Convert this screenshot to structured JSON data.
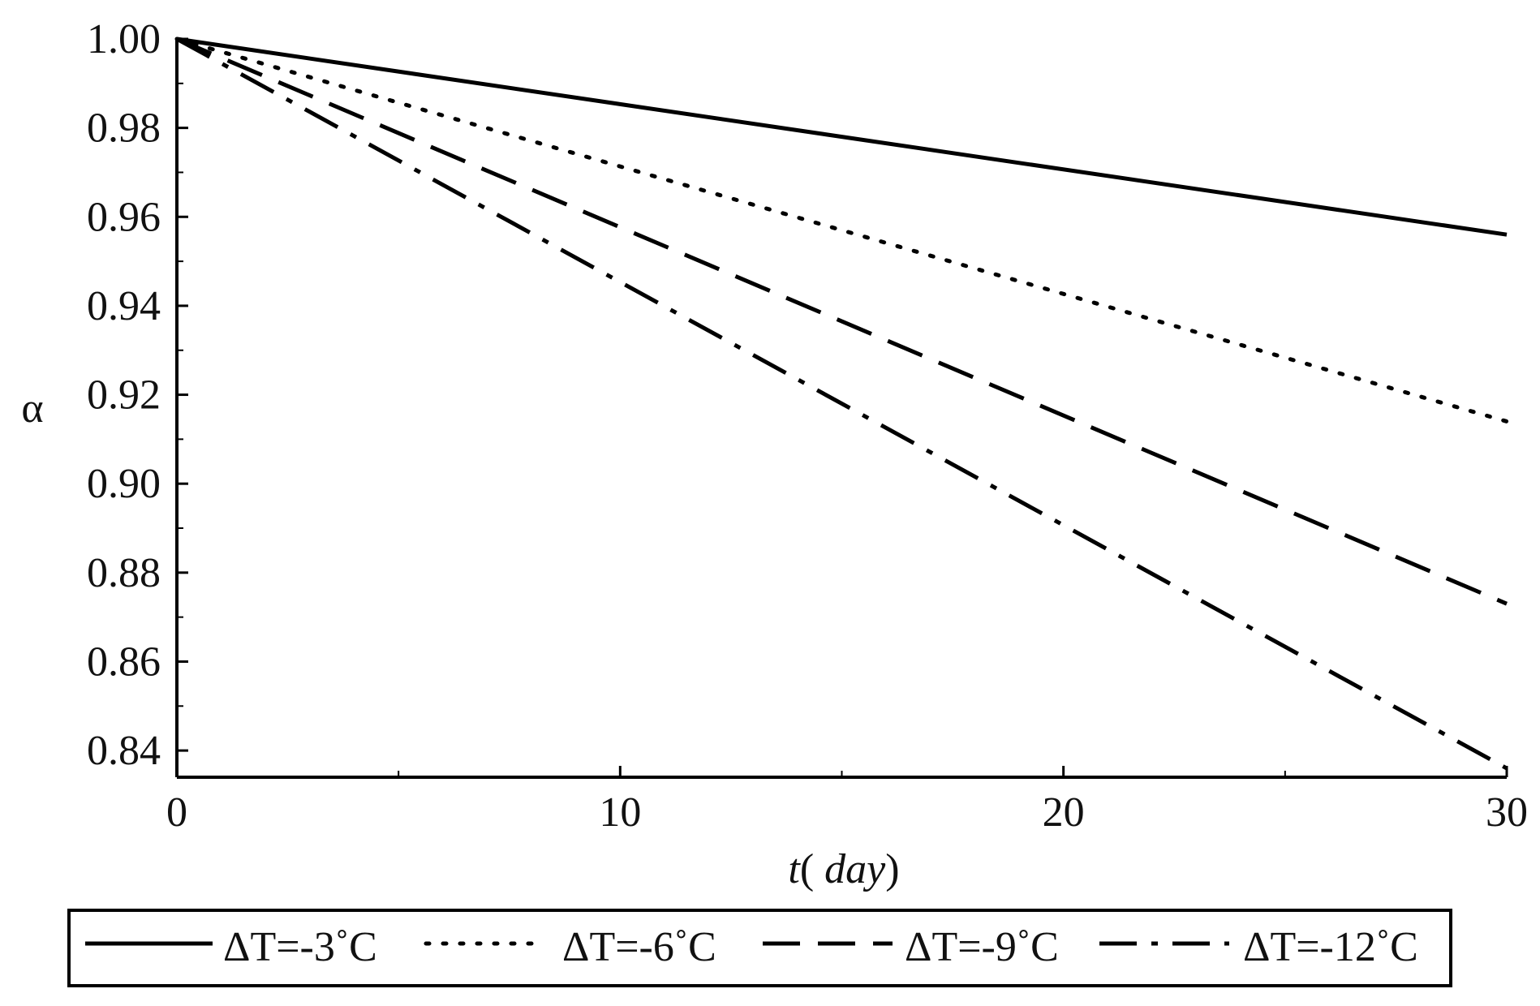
{
  "chart_data": {
    "type": "line",
    "title": "",
    "xlabel": "t( day)",
    "xlabel_parts": {
      "var": "t",
      "open": "(",
      "unit": " day",
      "close": ")"
    },
    "ylabel": "α",
    "xlim": [
      0,
      30
    ],
    "ylim": [
      0.834,
      1.0
    ],
    "xticks": [
      0,
      10,
      20,
      30
    ],
    "xtick_labels": [
      "0",
      "10",
      "20",
      "30"
    ],
    "yticks": [
      0.84,
      0.86,
      0.88,
      0.9,
      0.92,
      0.94,
      0.96,
      0.98,
      1.0
    ],
    "ytick_labels": [
      "0.84",
      "0.86",
      "0.88",
      "0.90",
      "0.92",
      "0.94",
      "0.96",
      "0.98",
      "1.00"
    ],
    "grid": false,
    "legend_position": "bottom",
    "x": [
      0,
      30
    ],
    "series": [
      {
        "name": "ΔT=-3˚C",
        "style": "solid",
        "values": [
          1.0,
          0.956
        ]
      },
      {
        "name": "ΔT=-6˚C",
        "style": "dotted",
        "values": [
          1.0,
          0.914
        ]
      },
      {
        "name": "ΔT=-9˚C",
        "style": "dashed",
        "values": [
          1.0,
          0.873
        ]
      },
      {
        "name": "ΔT=-12˚C",
        "style": "dashdot",
        "values": [
          1.0,
          0.836
        ]
      }
    ],
    "colors": {
      "line": "#000000",
      "text": "#111111",
      "background": "#ffffff"
    }
  }
}
